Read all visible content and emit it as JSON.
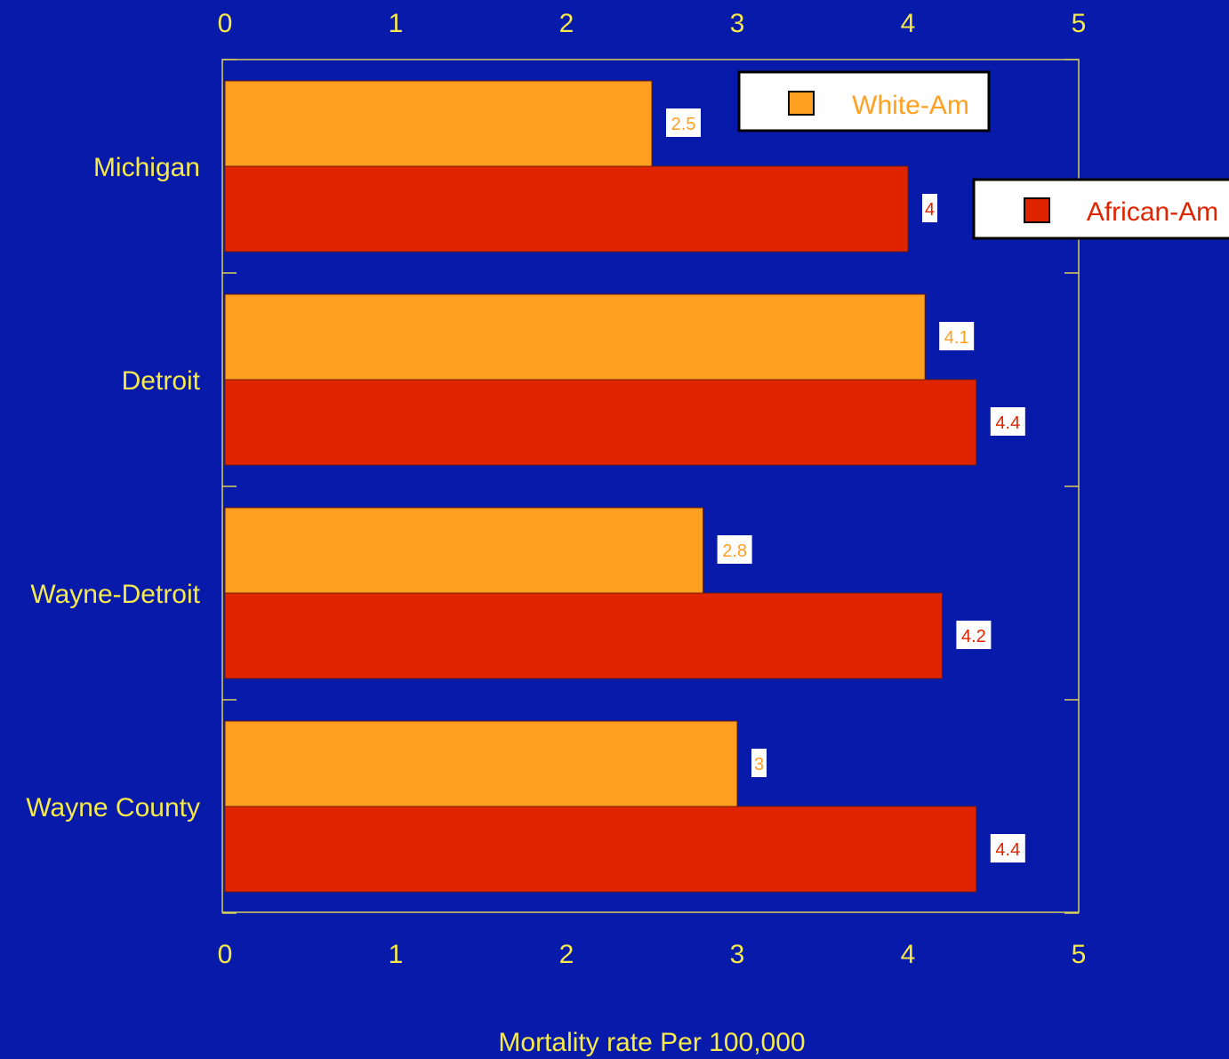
{
  "chart_data": {
    "type": "bar",
    "orientation": "horizontal",
    "categories": [
      "Michigan",
      "Detroit",
      "Wayne-Detroit",
      "Wayne County"
    ],
    "series": [
      {
        "name": "White-Am",
        "values": [
          2.5,
          4.1,
          2.8,
          3
        ],
        "labels": [
          "2.5",
          "4.1",
          "2.8",
          "3"
        ]
      },
      {
        "name": "African-Am",
        "values": [
          4,
          4.4,
          4.2,
          4.4
        ],
        "labels": [
          "4",
          "4.4",
          "4.2",
          "4.4"
        ]
      }
    ],
    "xlabel": "Mortality rate Per 100,000",
    "xlim": [
      0,
      5
    ],
    "xticks": [
      "0",
      "1",
      "2",
      "3",
      "4",
      "5"
    ],
    "grid": false,
    "legend_placement": "top-right"
  },
  "colors": {
    "background": "#071aaa",
    "axis_text": "#f5e94b",
    "white_am": "#ffa020",
    "african_am": "#e02400",
    "frame": "#d9cf5a"
  }
}
